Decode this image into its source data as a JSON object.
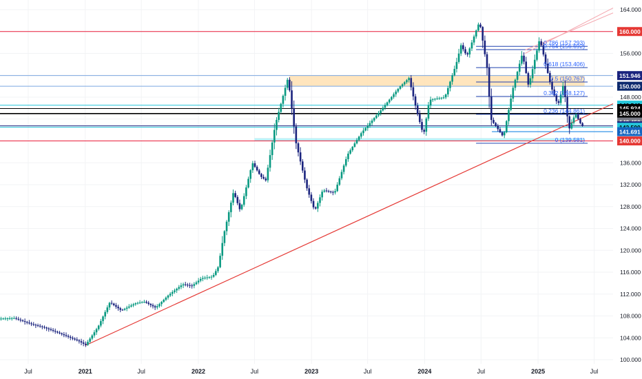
{
  "chart_data": {
    "type": "candlestick",
    "y_axis": {
      "min": 100,
      "max": 164,
      "position": "right",
      "ticks": [
        164,
        160,
        156,
        152,
        148,
        144,
        140,
        136,
        132,
        128,
        124,
        120,
        116,
        112,
        108,
        104,
        100
      ],
      "tick_labels": [
        "164.000",
        "160.000",
        "156.000",
        "152.000",
        "148.000",
        "144.000",
        "140.000",
        "136.000",
        "132.000",
        "128.000",
        "124.000",
        "120.000",
        "116.000",
        "112.000",
        "108.000",
        "104.000",
        "100.000"
      ]
    },
    "x_axis": {
      "start": "2020-04-01",
      "end": "2025-08-31",
      "ticks": [
        {
          "date": "2020-07-01",
          "label": "Jul",
          "bold": false
        },
        {
          "date": "2021-01-01",
          "label": "2021",
          "bold": true
        },
        {
          "date": "2021-07-01",
          "label": "Jul",
          "bold": false
        },
        {
          "date": "2022-01-01",
          "label": "2022",
          "bold": true
        },
        {
          "date": "2022-07-01",
          "label": "Jul",
          "bold": false
        },
        {
          "date": "2023-01-01",
          "label": "2023",
          "bold": true
        },
        {
          "date": "2023-07-01",
          "label": "Jul",
          "bold": false
        },
        {
          "date": "2024-01-01",
          "label": "2024",
          "bold": true
        },
        {
          "date": "2024-07-01",
          "label": "Jul",
          "bold": false
        },
        {
          "date": "2025-01-01",
          "label": "2025",
          "bold": true
        },
        {
          "date": "2025-07-01",
          "label": "Jul",
          "bold": false
        }
      ]
    },
    "series": {
      "up_color": "#089981",
      "down_color": "#1a237e",
      "anchors": [
        [
          "2020-04-01",
          107.5
        ],
        [
          "2020-05-20",
          107.6
        ],
        [
          "2020-07-15",
          106.5
        ],
        [
          "2020-08-25",
          105.9
        ],
        [
          "2020-10-15",
          104.8
        ],
        [
          "2020-12-15",
          103.4
        ],
        [
          "2021-01-06",
          102.7
        ],
        [
          "2021-02-15",
          106.0
        ],
        [
          "2021-03-25",
          110.5
        ],
        [
          "2021-05-01",
          109.0
        ],
        [
          "2021-06-15",
          110.3
        ],
        [
          "2021-07-15",
          110.6
        ],
        [
          "2021-08-20",
          109.5
        ],
        [
          "2021-09-30",
          111.8
        ],
        [
          "2021-11-15",
          113.8
        ],
        [
          "2021-12-15",
          113.5
        ],
        [
          "2022-01-15",
          114.9
        ],
        [
          "2022-02-20",
          115.2
        ],
        [
          "2022-03-10",
          117.0
        ],
        [
          "2022-03-28",
          123.0
        ],
        [
          "2022-04-28",
          130.7
        ],
        [
          "2022-05-20",
          127.2
        ],
        [
          "2022-06-28",
          136.0
        ],
        [
          "2022-07-25",
          133.5
        ],
        [
          "2022-08-10",
          132.8
        ],
        [
          "2022-09-10",
          143.0
        ],
        [
          "2022-10-21",
          151.6
        ],
        [
          "2022-11-15",
          139.8
        ],
        [
          "2022-12-20",
          131.5
        ],
        [
          "2023-01-15",
          127.2
        ],
        [
          "2023-02-10",
          131.0
        ],
        [
          "2023-03-20",
          130.5
        ],
        [
          "2023-05-01",
          137.5
        ],
        [
          "2023-06-15",
          141.5
        ],
        [
          "2023-08-15",
          145.5
        ],
        [
          "2023-10-15",
          149.8
        ],
        [
          "2023-11-15",
          151.5
        ],
        [
          "2023-12-10",
          145.5
        ],
        [
          "2024-01-01",
          141.0
        ],
        [
          "2024-01-20",
          147.5
        ],
        [
          "2024-03-10",
          148.0
        ],
        [
          "2024-04-15",
          154.0
        ],
        [
          "2024-05-01",
          157.5
        ],
        [
          "2024-05-20",
          155.5
        ],
        [
          "2024-06-30",
          161.9
        ],
        [
          "2024-07-25",
          153.0
        ],
        [
          "2024-08-05",
          144.0
        ],
        [
          "2024-09-15",
          140.7
        ],
        [
          "2024-10-15",
          149.5
        ],
        [
          "2024-11-15",
          156.0
        ],
        [
          "2024-12-05",
          150.0
        ],
        [
          "2025-01-10",
          158.7
        ],
        [
          "2025-02-15",
          150.0
        ],
        [
          "2025-03-10",
          146.5
        ],
        [
          "2025-03-28",
          150.5
        ],
        [
          "2025-04-14",
          142.0
        ],
        [
          "2025-05-05",
          145.0
        ],
        [
          "2025-05-25",
          142.8
        ]
      ]
    },
    "horizontal_levels": [
      {
        "value": 160.0,
        "label": "160.000",
        "color": "#e91e3a",
        "badge_bg": "#e53935",
        "badge_fg": "#ffffff"
      },
      {
        "value": 151.946,
        "label": "151.946",
        "color": "#7ba7e0",
        "badge_bg": "#1a237e",
        "badge_fg": "#ffffff"
      },
      {
        "value": 150.0,
        "label": "150.000",
        "color": "#7ba7e0",
        "badge_bg": "#0d2a6e",
        "badge_fg": "#ffffff"
      },
      {
        "value": 146.543,
        "label": "146.543",
        "color": "#26c6da",
        "badge_bg": "#26c6da",
        "badge_fg": "#000000"
      },
      {
        "value": 145.924,
        "label": "145.924",
        "color": "#000000",
        "badge_bg": "#000000",
        "badge_fg": "#ffffff"
      },
      {
        "value": 145.0,
        "label": "145.000",
        "color": "#000000",
        "badge_bg": "#000000",
        "badge_fg": "#ffffff"
      },
      {
        "value": 143.45,
        "label": "143.450",
        "color": "#8c8c8c",
        "badge_bg": "#787b86",
        "badge_fg": "#ffffff"
      },
      {
        "value": 142.762,
        "label": "142.762",
        "color": "#1a237e",
        "badge_bg": "#1a237e",
        "badge_fg": "#ffffff"
      },
      {
        "value": 142.5,
        "label": "142.500",
        "color": "#26c6da",
        "badge_bg": "#26c6da",
        "badge_fg": "#000000"
      },
      {
        "value": 141.691,
        "label": "141.691",
        "color": "#5b9bd5",
        "badge_bg": "#1565c0",
        "badge_fg": "#ffffff"
      },
      {
        "value": 140.0,
        "label": "140.000",
        "color": "#e91e3a",
        "badge_bg": "#e53935",
        "badge_fg": "#ffffff"
      }
    ],
    "zones": [
      {
        "from": "2022-10-21",
        "to": "2025-05-31",
        "low": 150.0,
        "high": 151.946,
        "color": "#ffe0b2"
      },
      {
        "from": "2022-07-01",
        "to": "2025-05-31",
        "low": 140.0,
        "high": 140.5,
        "color": "#b2ebf2"
      }
    ],
    "fibonacci": [
      {
        "level": "0.786",
        "value": 157.293,
        "label": "0.786 (157.293)"
      },
      {
        "level": "0.764",
        "value": 156.692,
        "label": "0.764 (156.692)"
      },
      {
        "level": "0.618",
        "value": 153.406,
        "label": "0.618 (153.406)"
      },
      {
        "level": "0.5",
        "value": 150.767,
        "label": "0.5 (150.767)"
      },
      {
        "level": "0.382",
        "value": 148.127,
        "label": "0.382 (148.127)"
      },
      {
        "level": "0.236",
        "value": 144.861,
        "label": "0.236 (144.861)"
      },
      {
        "level": "0",
        "value": 139.581,
        "label": "0 (139.581)"
      }
    ],
    "trendlines": [
      {
        "from": [
          "2021-01-01",
          102.6
        ],
        "to": [
          "2025-08-31",
          146.8
        ],
        "color": "#e53935"
      }
    ],
    "channel_lines": [
      {
        "from": [
          "2024-11-20",
          156.6
        ],
        "to": [
          "2025-08-31",
          163.4
        ],
        "color": "#f4a6ae"
      },
      {
        "from": [
          "2024-11-20",
          156.0
        ],
        "to": [
          "2025-08-31",
          164.3
        ],
        "color": "#f4a6ae"
      }
    ]
  }
}
